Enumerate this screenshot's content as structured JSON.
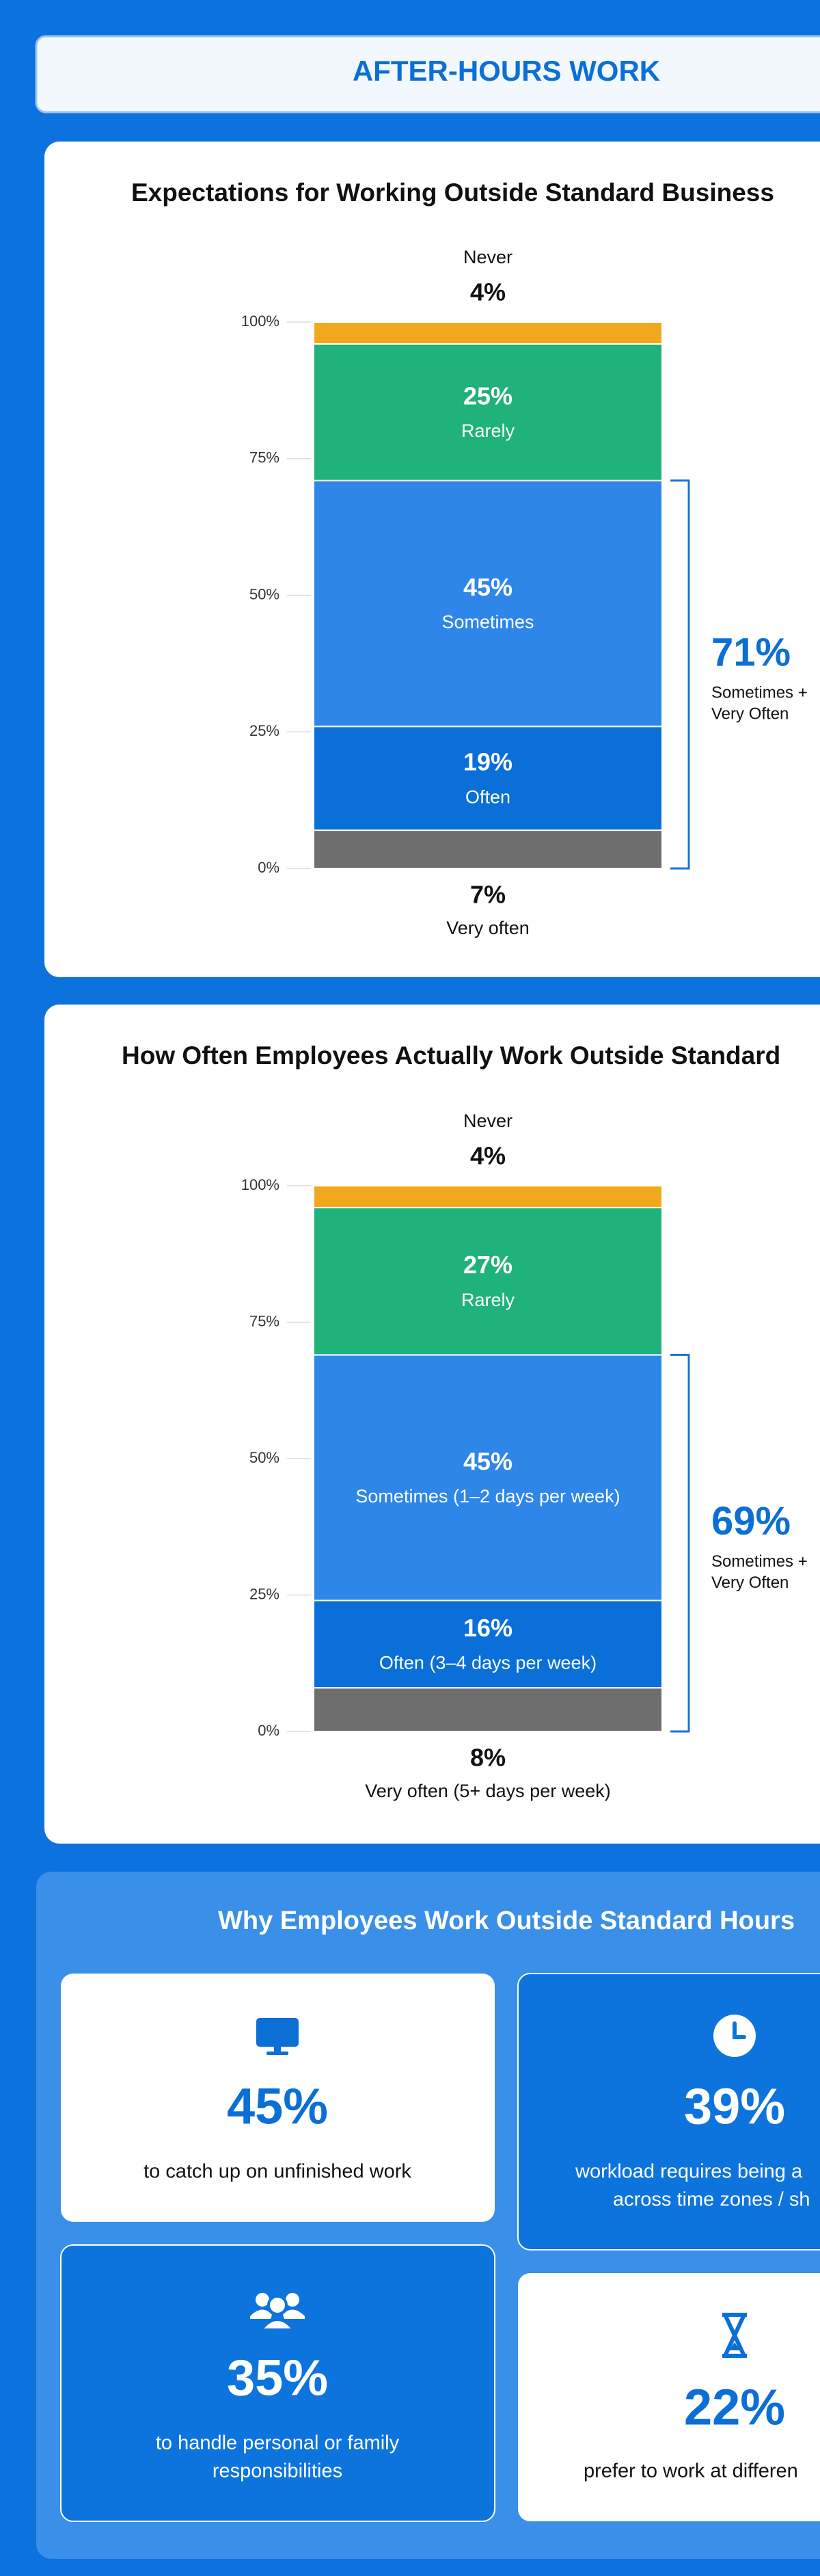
{
  "header": {
    "title": "AFTER-HOURS WORK"
  },
  "chart_data": [
    {
      "type": "stacked_bar",
      "title": "Expectations for Working Outside Standard Business",
      "ylim": [
        0,
        100
      ],
      "yticks": [
        {
          "value": 0,
          "label": "0%"
        },
        {
          "value": 25,
          "label": "25%"
        },
        {
          "value": 50,
          "label": "50%"
        },
        {
          "value": 75,
          "label": "75%"
        },
        {
          "value": 100,
          "label": "100%"
        }
      ],
      "series": [
        {
          "name": "Very often",
          "color": "#6e6e6e",
          "values": [
            7
          ],
          "value_labels": [
            "7%"
          ]
        },
        {
          "name": "Often",
          "color": "#0a6fd8",
          "values": [
            19
          ],
          "value_labels": [
            "19%"
          ]
        },
        {
          "name": "Sometimes",
          "color": "#2e86e8",
          "values": [
            45
          ],
          "value_labels": [
            "45%"
          ]
        },
        {
          "name": "Rarely",
          "color": "#1fb27a",
          "values": [
            25
          ],
          "value_labels": [
            "25%"
          ]
        },
        {
          "name": "Never",
          "color": "#f2a81d",
          "values": [
            4
          ],
          "value_labels": [
            "4%"
          ]
        }
      ],
      "annotation": {
        "label": "71%",
        "lines": [
          "Sometimes +",
          "Very Often"
        ]
      }
    },
    {
      "type": "stacked_bar",
      "title": "How Often Employees Actually Work Outside Standard",
      "ylim": [
        0,
        100
      ],
      "yticks": [
        {
          "value": 0,
          "label": "0%"
        },
        {
          "value": 25,
          "label": "25%"
        },
        {
          "value": 50,
          "label": "50%"
        },
        {
          "value": 75,
          "label": "75%"
        },
        {
          "value": 100,
          "label": "100%"
        }
      ],
      "series": [
        {
          "name": "Very often (5+ days per week)",
          "color": "#6e6e6e",
          "values": [
            8
          ],
          "value_labels": [
            "8%"
          ]
        },
        {
          "name": "Often (3–4 days per week)",
          "color": "#0a6fd8",
          "values": [
            16
          ],
          "value_labels": [
            "16%"
          ]
        },
        {
          "name": "Sometimes (1–2 days per week)",
          "color": "#2e86e8",
          "values": [
            45
          ],
          "value_labels": [
            "45%"
          ]
        },
        {
          "name": "Rarely",
          "color": "#1fb27a",
          "values": [
            27
          ],
          "value_labels": [
            "27%"
          ]
        },
        {
          "name": "Never",
          "color": "#f2a81d",
          "values": [
            4
          ],
          "value_labels": [
            "4%"
          ]
        }
      ],
      "annotation": {
        "label": "69%",
        "lines": [
          "Sometimes +",
          "Very Often"
        ]
      }
    }
  ],
  "reasons": {
    "title": "Why Employees Work Outside Standard Hours",
    "items": [
      {
        "value": "45%",
        "lines": [
          "to catch up on unfinished work"
        ]
      },
      {
        "value": "39%",
        "lines": [
          "workload requires being a",
          "across time zones / sh"
        ]
      },
      {
        "value": "35%",
        "lines": [
          "to handle personal or family",
          "responsibilities"
        ]
      },
      {
        "value": "22%",
        "lines": [
          "prefer to work at differen"
        ]
      }
    ]
  }
}
